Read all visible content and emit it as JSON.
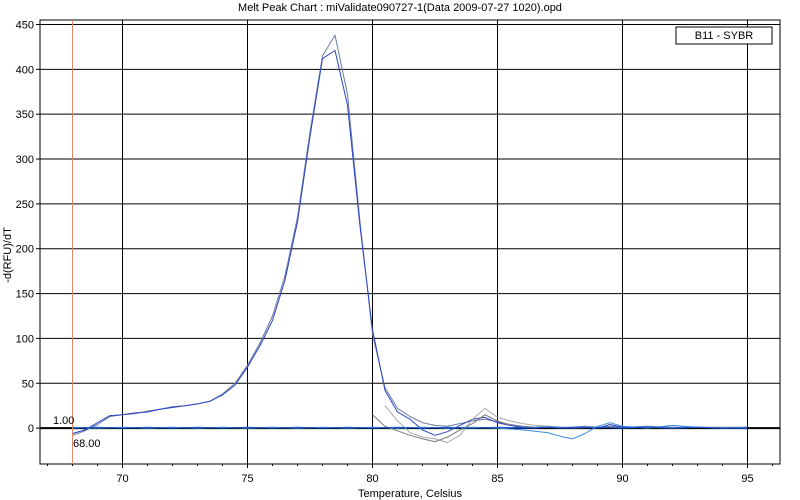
{
  "chart_data": {
    "type": "line",
    "title": "Melt Peak Chart : miValidate090727-1(Data 2009-07-27 1020).opd",
    "xlabel": "Temperature, Celsius",
    "ylabel": "-d(RFU)/dT",
    "xlim": [
      66.7,
      96.3
    ],
    "ylim": [
      -40,
      455
    ],
    "xticks": [
      70,
      75,
      80,
      85,
      90,
      95
    ],
    "yticks": [
      0,
      50,
      100,
      150,
      200,
      250,
      300,
      350,
      400,
      450
    ],
    "grid": true,
    "legend": {
      "label": "B11 - SYBR",
      "placement": "top-right"
    },
    "threshold": {
      "label": "1.00",
      "value": 1.0
    },
    "cursor": {
      "label": "68.00",
      "x": 68.0,
      "color": "#e08a6a"
    },
    "series": [
      {
        "color": "#6a7aa0",
        "x": [
          68.0,
          68.5,
          69.0,
          69.5,
          70.0,
          70.5,
          71.0,
          71.5,
          72.0,
          72.5,
          73.0,
          73.5,
          74.0,
          74.5,
          75.0,
          75.5,
          76.0,
          76.5,
          77.0,
          77.5,
          78.0,
          78.5,
          79.0,
          79.5,
          80.0,
          80.5,
          81.0,
          81.5,
          82.0,
          82.5,
          83.0,
          83.5,
          84.0,
          84.5,
          85.0,
          85.5,
          86.0,
          86.5,
          87.0,
          87.5,
          88.0,
          88.5,
          89.0,
          89.5,
          90.0,
          91.0,
          92.0,
          93.0,
          94.0,
          95.0
        ],
        "values": [
          -8,
          -3,
          4,
          13,
          15,
          16,
          19,
          21,
          24,
          25,
          27,
          30,
          38,
          50,
          70,
          95,
          125,
          170,
          235,
          330,
          415,
          438,
          372,
          230,
          105,
          45,
          22,
          13,
          6,
          3,
          2,
          5,
          8,
          10,
          7,
          4,
          2,
          1,
          2,
          1,
          1,
          2,
          1,
          2,
          1,
          2,
          1,
          1,
          1,
          1
        ]
      },
      {
        "color": "#2a44c8",
        "x": [
          68.0,
          68.5,
          69.0,
          69.5,
          70.0,
          70.5,
          71.0,
          71.5,
          72.0,
          72.5,
          73.0,
          73.5,
          74.0,
          74.5,
          75.0,
          75.5,
          76.0,
          76.5,
          77.0,
          77.5,
          78.0,
          78.5,
          79.0,
          79.5,
          80.0,
          80.5,
          81.0,
          81.5,
          82.0,
          82.5,
          83.0,
          83.5,
          84.0,
          84.5,
          85.0,
          85.5,
          86.0,
          86.5,
          87.0,
          87.5,
          88.0,
          88.5,
          89.0,
          89.5,
          90.0,
          91.0,
          92.0,
          93.0,
          94.0,
          95.0
        ],
        "values": [
          -6,
          -2,
          6,
          14,
          15,
          17,
          18,
          21,
          23,
          25,
          27,
          30,
          37,
          48,
          68,
          92,
          120,
          165,
          230,
          325,
          412,
          421,
          360,
          225,
          110,
          42,
          18,
          10,
          -2,
          -8,
          -4,
          3,
          10,
          12,
          6,
          3,
          1,
          0,
          1,
          0,
          1,
          1,
          0,
          4,
          1,
          1,
          0,
          1,
          0,
          1
        ]
      },
      {
        "color": "#a8a8a8",
        "x": [
          80.5,
          81.0,
          81.5,
          82.0,
          82.5,
          83.0,
          83.5,
          84.0,
          84.5,
          85.0,
          85.5,
          86.0,
          86.5,
          87.0
        ],
        "values": [
          25,
          8,
          -5,
          -10,
          -12,
          -16,
          -8,
          10,
          22,
          12,
          8,
          5,
          3,
          2
        ]
      },
      {
        "color": "#787878",
        "x": [
          80.0,
          80.5,
          81.0,
          81.5,
          82.0,
          82.5,
          83.0,
          83.5,
          84.0,
          84.5,
          85.0,
          85.5
        ],
        "values": [
          15,
          2,
          -3,
          -8,
          -12,
          -15,
          -10,
          -2,
          5,
          15,
          8,
          3
        ]
      },
      {
        "color": "#3c8cdc",
        "x": [
          68.0,
          69.0,
          70.0,
          71.0,
          72.0,
          73.0,
          74.0,
          75.0,
          76.0,
          77.0,
          78.0,
          79.0,
          80.0,
          81.0,
          82.0,
          83.0,
          84.0,
          85.0,
          86.0,
          87.0,
          87.5,
          88.0,
          88.5,
          89.0,
          89.5,
          90.0,
          91.0,
          92.0,
          93.0,
          94.0,
          95.0
        ],
        "values": [
          1,
          0,
          1,
          0,
          1,
          0,
          1,
          0,
          1,
          0,
          1,
          0,
          1,
          0,
          1,
          0,
          1,
          0,
          -2,
          -5,
          -9,
          -12,
          -6,
          2,
          6,
          2,
          0,
          3,
          1,
          0,
          1
        ]
      },
      {
        "color": "#1a5ad8",
        "x": [
          68.0,
          69.0,
          70.0,
          71.0,
          72.0,
          73.0,
          74.0,
          75.0,
          76.0,
          77.0,
          78.0,
          79.0,
          80.0,
          81.0,
          82.0,
          83.0,
          84.0,
          85.0,
          86.0,
          87.0,
          88.0,
          89.0,
          90.0,
          91.0,
          92.0,
          93.0,
          94.0,
          95.0
        ],
        "values": [
          0,
          1,
          0,
          1,
          0,
          1,
          0,
          1,
          0,
          1,
          0,
          1,
          0,
          1,
          0,
          1,
          0,
          1,
          0,
          1,
          0,
          1,
          0,
          1,
          0,
          1,
          0,
          0
        ]
      }
    ]
  }
}
